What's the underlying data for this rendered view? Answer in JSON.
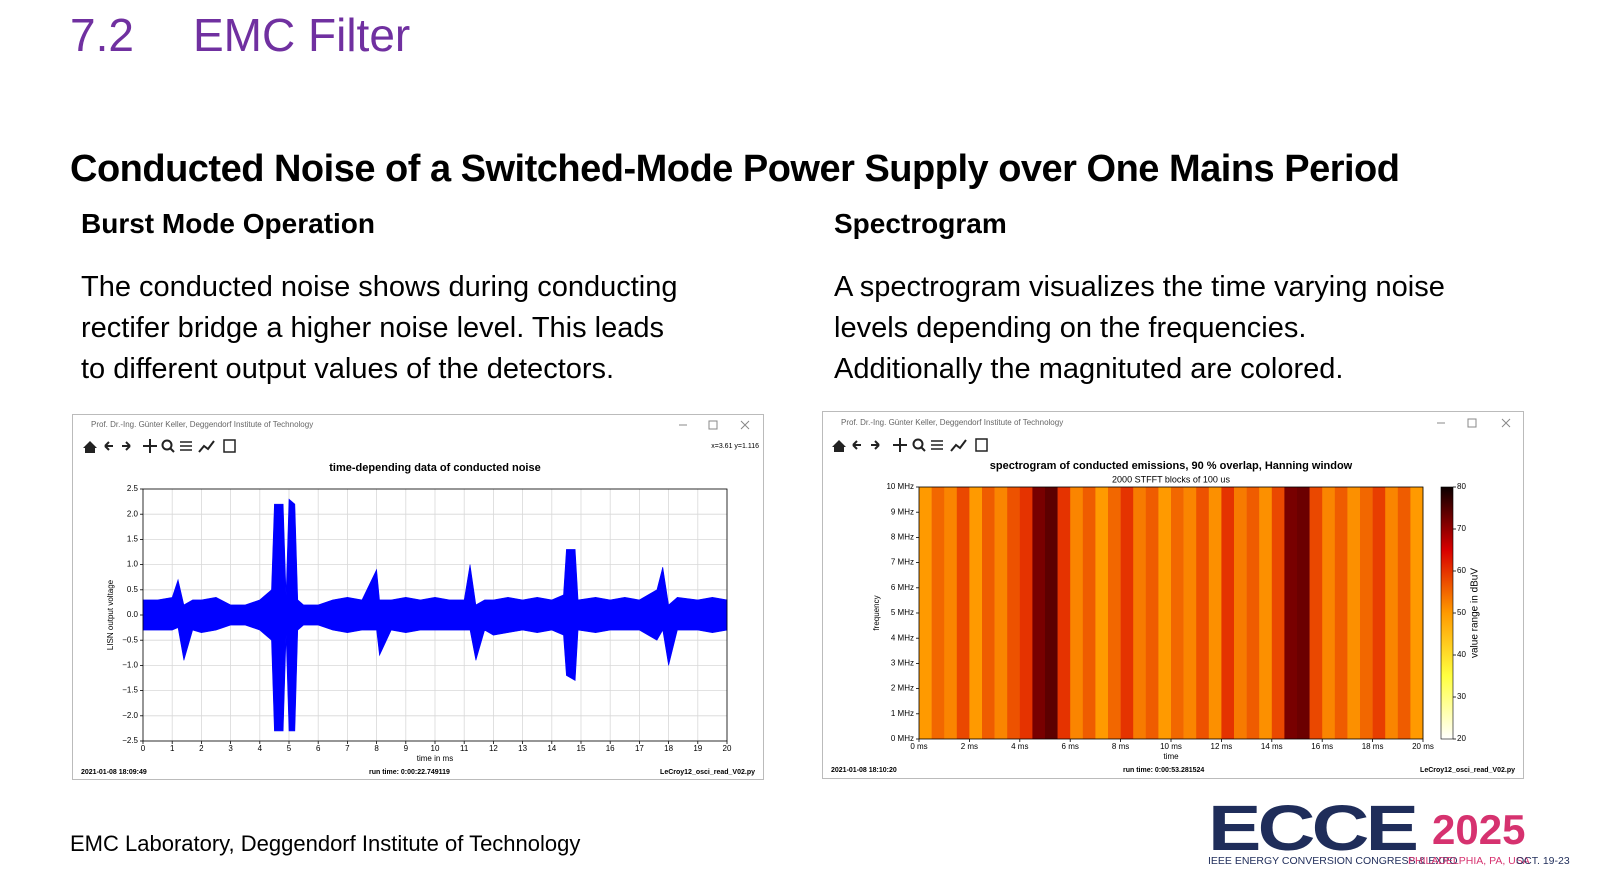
{
  "header": {
    "section": "7.2",
    "title": "EMC Filter"
  },
  "heading": "Conducted Noise of a Switched-Mode Power Supply over One Mains Period",
  "columns": [
    {
      "title": "Burst Mode Operation",
      "lines": [
        "The conducted noise shows during conducting",
        "rectifer bridge a higher noise level. This leads",
        "to different output values of the detectors."
      ]
    },
    {
      "title": "Spectrogram",
      "lines": [
        "A spectrogram visualizes the time varying noise",
        "levels depending on the frequencies.",
        "Additionally the magnituted are colored."
      ]
    }
  ],
  "figures": [
    {
      "window_title": "Prof. Dr.-Ing. Günter Keller, Deggendorf Institute of Technology",
      "coords": "x=3.61 y=1.116",
      "date": "2021-01-08  18:09:49",
      "runtime": "run time: 0:00:22.749119",
      "script": "LeCroy12_osci_read_V02.py",
      "chart_data": {
        "type": "envelope",
        "title": "time-depending data of conducted noise",
        "xlabel": "time in ms",
        "ylabel": "LISN output voltage",
        "color": "#0000ff",
        "grid": true,
        "xlim": [
          0,
          20
        ],
        "ylim": [
          -2.5,
          2.5
        ],
        "xticks": [
          0,
          1,
          2,
          3,
          4,
          5,
          6,
          7,
          8,
          9,
          10,
          11,
          12,
          13,
          14,
          15,
          16,
          17,
          18,
          19,
          20
        ],
        "yticks": [
          {
            "value": -2.5,
            "label": "−2.5"
          },
          {
            "value": -2,
            "label": "−2.0"
          },
          {
            "value": -1.5,
            "label": "−1.5"
          },
          {
            "value": -1,
            "label": "−1.0"
          },
          {
            "value": -0.5,
            "label": "−0.5"
          },
          {
            "value": 0,
            "label": "0.0"
          },
          0.5,
          {
            "value": 1,
            "label": "1.0"
          },
          1.5,
          {
            "value": 2,
            "label": "2.0"
          },
          2.5
        ],
        "x": [
          0,
          0.5,
          1.0,
          1.2,
          1.4,
          1.7,
          2.0,
          2.5,
          3.0,
          3.5,
          4.0,
          4.4,
          4.5,
          4.8,
          4.9,
          5.0,
          5.2,
          5.3,
          5.5,
          6.0,
          6.5,
          7.0,
          7.5,
          8.0,
          8.1,
          8.5,
          9.0,
          9.5,
          10.0,
          10.5,
          11.0,
          11.2,
          11.4,
          11.7,
          12.0,
          12.5,
          13.0,
          13.5,
          14.0,
          14.4,
          14.5,
          14.8,
          14.9,
          15.5,
          16.0,
          16.5,
          17.0,
          17.6,
          17.8,
          18.0,
          18.3,
          19.0,
          19.5,
          20.0
        ],
        "upper": [
          0.3,
          0.3,
          0.35,
          0.7,
          0.2,
          0.3,
          0.3,
          0.35,
          0.2,
          0.2,
          0.3,
          0.5,
          2.2,
          2.2,
          0.4,
          2.3,
          2.2,
          0.3,
          0.2,
          0.2,
          0.3,
          0.35,
          0.3,
          0.9,
          0.3,
          0.3,
          0.35,
          0.3,
          0.35,
          0.3,
          0.3,
          1.0,
          0.2,
          0.3,
          0.3,
          0.35,
          0.3,
          0.35,
          0.3,
          0.4,
          1.3,
          1.3,
          0.3,
          0.35,
          0.3,
          0.35,
          0.3,
          0.5,
          0.95,
          0.2,
          0.35,
          0.3,
          0.35,
          0.3
        ],
        "lower": [
          -0.3,
          -0.3,
          -0.3,
          -0.25,
          -0.9,
          -0.3,
          -0.35,
          -0.3,
          -0.2,
          -0.2,
          -0.3,
          -0.5,
          -2.3,
          -2.3,
          -0.4,
          -2.3,
          -2.3,
          -0.3,
          -0.2,
          -0.2,
          -0.3,
          -0.35,
          -0.3,
          -0.3,
          -0.8,
          -0.3,
          -0.35,
          -0.3,
          -0.3,
          -0.3,
          -0.3,
          -0.3,
          -0.9,
          -0.3,
          -0.4,
          -0.35,
          -0.3,
          -0.35,
          -0.3,
          -0.4,
          -1.2,
          -1.3,
          -0.3,
          -0.35,
          -0.3,
          -0.3,
          -0.3,
          -0.5,
          -0.3,
          -1.0,
          -0.3,
          -0.3,
          -0.35,
          -0.3
        ]
      }
    },
    {
      "window_title": "Prof. Dr.-Ing. Günter Keller, Deggendorf Institute of Technology",
      "date": "2021-01-08  18:10:20",
      "runtime": "run time: 0:00:53.281524",
      "script": "LeCroy12_osci_read_V02.py",
      "chart_data": {
        "type": "heatmap",
        "title": "spectrogram of conducted emissions, 90 % overlap, Hanning window",
        "subtitle": "2000 STFFT blocks of 100 us",
        "xlabel": "time",
        "ylabel": "frequency",
        "colorbar_label": "value range in dBuV",
        "xlim": [
          0,
          20
        ],
        "ylim": [
          0,
          10
        ],
        "clim": [
          20,
          80
        ],
        "xticks": [
          {
            "value": 0,
            "label": "0 ms"
          },
          {
            "value": 2,
            "label": "2 ms"
          },
          {
            "value": 4,
            "label": "4 ms"
          },
          {
            "value": 6,
            "label": "6 ms"
          },
          {
            "value": 8,
            "label": "8 ms"
          },
          {
            "value": 10,
            "label": "10 ms"
          },
          {
            "value": 12,
            "label": "12 ms"
          },
          {
            "value": 14,
            "label": "14 ms"
          },
          {
            "value": 16,
            "label": "16 ms"
          },
          {
            "value": 18,
            "label": "18 ms"
          },
          {
            "value": 20,
            "label": "20 ms"
          }
        ],
        "yticks": [
          {
            "value": 0,
            "label": "0 MHz"
          },
          {
            "value": 1,
            "label": "1 MHz"
          },
          {
            "value": 2,
            "label": "2 MHz"
          },
          {
            "value": 3,
            "label": "3 MHz"
          },
          {
            "value": 4,
            "label": "4 MHz"
          },
          {
            "value": 5,
            "label": "5 MHz"
          },
          {
            "value": 6,
            "label": "6 MHz"
          },
          {
            "value": 7,
            "label": "7 MHz"
          },
          {
            "value": 8,
            "label": "8 MHz"
          },
          {
            "value": 9,
            "label": "9 MHz"
          },
          {
            "value": 10,
            "label": "10 MHz"
          }
        ],
        "cticks": [
          20,
          30,
          40,
          50,
          60,
          70,
          80
        ],
        "x": [
          0,
          0.5,
          1.0,
          1.5,
          2.0,
          2.5,
          3.0,
          3.5,
          4.0,
          4.5,
          5.0,
          5.5,
          6.0,
          6.5,
          7.0,
          7.5,
          8.0,
          8.5,
          9.0,
          9.5,
          10.0,
          10.5,
          11.0,
          11.5,
          12.0,
          12.5,
          13.0,
          13.5,
          14.0,
          14.5,
          15.0,
          15.5,
          16.0,
          16.5,
          17.0,
          17.5,
          18.0,
          18.5,
          19.0,
          19.5
        ],
        "values": [
          50,
          55,
          52,
          58,
          50,
          56,
          52,
          57,
          60,
          72,
          74,
          60,
          52,
          56,
          50,
          55,
          60,
          53,
          56,
          50,
          55,
          52,
          57,
          51,
          60,
          53,
          56,
          51,
          58,
          72,
          73,
          58,
          52,
          56,
          51,
          55,
          59,
          52,
          56,
          50
        ]
      }
    }
  ],
  "footer": "EMC Laboratory, Deggendorf Institute of Technology",
  "logo": {
    "name": "ECCE",
    "year": "2025",
    "tagline": "IEEE ENERGY CONVERSION CONGRESS & EXPO",
    "location": "PHILADELPHIA, PA, USA",
    "dates": "OCT. 19-23"
  }
}
